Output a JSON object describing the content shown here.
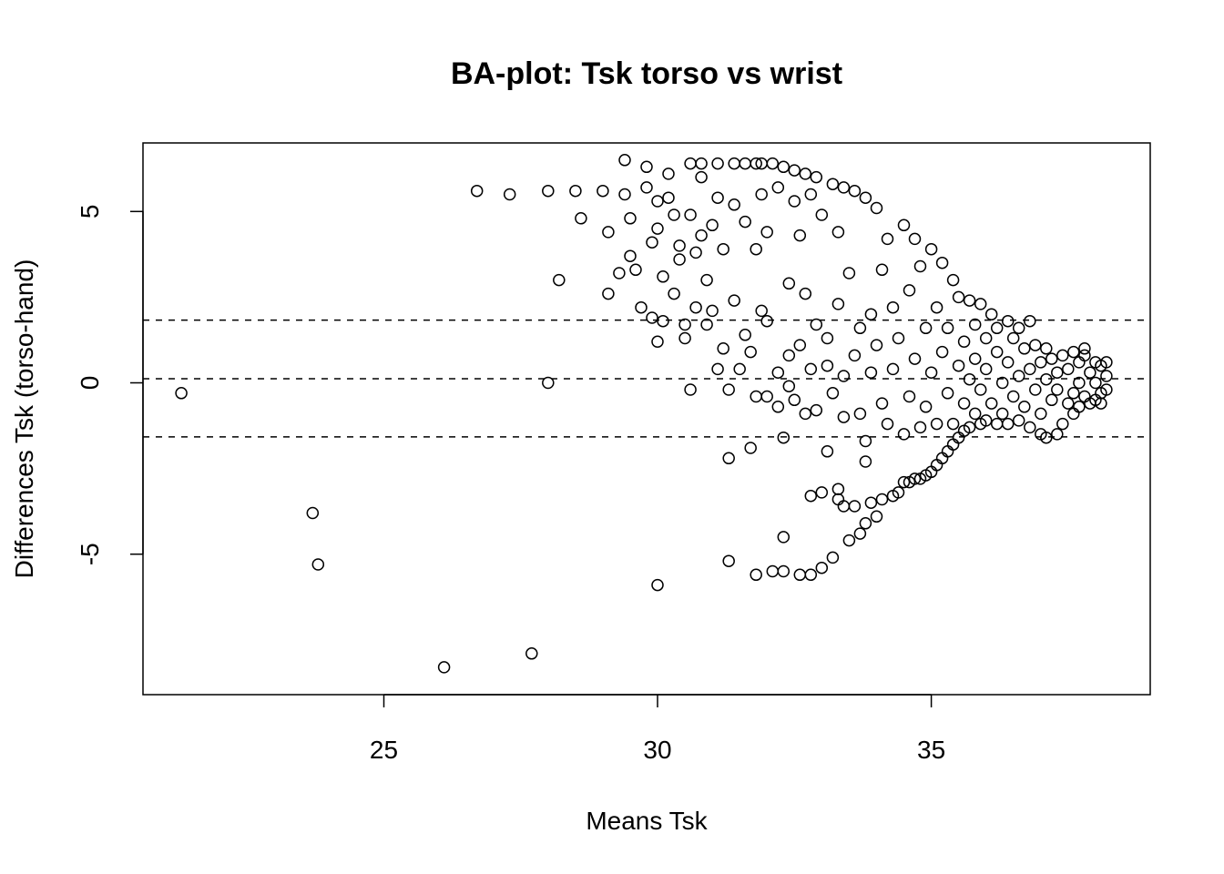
{
  "chart_data": {
    "type": "scatter",
    "title": "BA-plot: Tsk torso vs wrist",
    "xlabel": "Means Tsk",
    "ylabel": "Differences Tsk (torso-hand)",
    "xlim": [
      20.6,
      39.0
    ],
    "ylim": [
      -9.1,
      7.0
    ],
    "xticks": [
      25,
      30,
      35
    ],
    "yticks": [
      -5,
      0,
      5
    ],
    "grid": false,
    "legend": "none",
    "marker": "open-circle",
    "reference_lines": [
      {
        "name": "upper limit of agreement",
        "y": 1.83
      },
      {
        "name": "mean difference",
        "y": 0.12
      },
      {
        "name": "lower limit of agreement",
        "y": -1.58
      }
    ],
    "points": [
      [
        21.3,
        -0.3
      ],
      [
        23.7,
        -3.8
      ],
      [
        23.8,
        -5.3
      ],
      [
        26.1,
        -8.3
      ],
      [
        27.7,
        -7.9
      ],
      [
        26.7,
        5.6
      ],
      [
        27.3,
        5.5
      ],
      [
        28.0,
        5.6
      ],
      [
        28.2,
        3.0
      ],
      [
        28.0,
        0.0
      ],
      [
        28.5,
        5.6
      ],
      [
        28.6,
        4.8
      ],
      [
        29.0,
        5.6
      ],
      [
        29.1,
        4.4
      ],
      [
        29.1,
        2.6
      ],
      [
        29.3,
        3.2
      ],
      [
        29.4,
        6.5
      ],
      [
        29.4,
        5.5
      ],
      [
        29.5,
        3.7
      ],
      [
        29.5,
        4.8
      ],
      [
        29.6,
        3.3
      ],
      [
        29.7,
        2.2
      ],
      [
        29.8,
        6.3
      ],
      [
        29.8,
        5.7
      ],
      [
        29.9,
        4.1
      ],
      [
        29.9,
        1.9
      ],
      [
        30.0,
        5.3
      ],
      [
        30.0,
        4.5
      ],
      [
        30.0,
        1.2
      ],
      [
        30.1,
        3.1
      ],
      [
        30.1,
        1.8
      ],
      [
        30.0,
        -5.9
      ],
      [
        30.2,
        6.1
      ],
      [
        30.2,
        5.4
      ],
      [
        30.3,
        4.9
      ],
      [
        30.3,
        2.6
      ],
      [
        30.4,
        4.0
      ],
      [
        30.4,
        3.6
      ],
      [
        30.5,
        1.7
      ],
      [
        30.5,
        1.3
      ],
      [
        30.6,
        6.4
      ],
      [
        30.6,
        4.9
      ],
      [
        30.6,
        -0.2
      ],
      [
        30.7,
        3.8
      ],
      [
        30.7,
        2.2
      ],
      [
        30.8,
        6.4
      ],
      [
        30.8,
        6.0
      ],
      [
        30.8,
        4.3
      ],
      [
        30.9,
        1.7
      ],
      [
        30.9,
        3.0
      ],
      [
        31.0,
        4.6
      ],
      [
        31.0,
        2.1
      ],
      [
        31.1,
        6.4
      ],
      [
        31.1,
        5.4
      ],
      [
        31.1,
        0.4
      ],
      [
        31.2,
        3.9
      ],
      [
        31.2,
        1.0
      ],
      [
        31.3,
        -2.2
      ],
      [
        31.3,
        -0.2
      ],
      [
        31.3,
        -5.2
      ],
      [
        31.4,
        6.4
      ],
      [
        31.4,
        5.2
      ],
      [
        31.4,
        2.4
      ],
      [
        31.5,
        0.4
      ],
      [
        31.6,
        6.4
      ],
      [
        31.6,
        4.7
      ],
      [
        31.6,
        1.4
      ],
      [
        31.7,
        0.9
      ],
      [
        31.7,
        -1.9
      ],
      [
        31.8,
        6.4
      ],
      [
        31.8,
        3.9
      ],
      [
        31.8,
        -0.4
      ],
      [
        31.8,
        -5.6
      ],
      [
        31.9,
        6.4
      ],
      [
        31.9,
        5.5
      ],
      [
        31.9,
        2.1
      ],
      [
        32.0,
        -0.4
      ],
      [
        32.0,
        1.8
      ],
      [
        32.0,
        4.4
      ],
      [
        32.1,
        6.4
      ],
      [
        32.1,
        -5.5
      ],
      [
        32.2,
        5.7
      ],
      [
        32.2,
        0.3
      ],
      [
        32.2,
        -0.7
      ],
      [
        32.3,
        6.3
      ],
      [
        32.3,
        -1.6
      ],
      [
        32.3,
        -4.5
      ],
      [
        32.3,
        -5.5
      ],
      [
        32.4,
        2.9
      ],
      [
        32.4,
        0.8
      ],
      [
        32.4,
        -0.1
      ],
      [
        32.5,
        6.2
      ],
      [
        32.5,
        5.3
      ],
      [
        32.5,
        -0.5
      ],
      [
        32.6,
        -5.6
      ],
      [
        32.6,
        1.1
      ],
      [
        32.6,
        4.3
      ],
      [
        32.7,
        6.1
      ],
      [
        32.7,
        2.6
      ],
      [
        32.7,
        -0.9
      ],
      [
        32.8,
        5.5
      ],
      [
        32.8,
        0.4
      ],
      [
        32.8,
        -3.3
      ],
      [
        32.8,
        -5.6
      ],
      [
        32.9,
        6.0
      ],
      [
        32.9,
        1.7
      ],
      [
        32.9,
        -0.8
      ],
      [
        33.0,
        4.9
      ],
      [
        33.0,
        -3.2
      ],
      [
        33.0,
        -5.4
      ],
      [
        33.1,
        0.5
      ],
      [
        33.1,
        -2.0
      ],
      [
        33.1,
        1.3
      ],
      [
        33.2,
        5.8
      ],
      [
        33.2,
        -5.1
      ],
      [
        33.2,
        -0.3
      ],
      [
        33.3,
        4.4
      ],
      [
        33.3,
        2.3
      ],
      [
        33.3,
        -3.1
      ],
      [
        33.3,
        -3.4
      ],
      [
        33.4,
        5.7
      ],
      [
        33.4,
        0.2
      ],
      [
        33.4,
        -1.0
      ],
      [
        33.4,
        -3.6
      ],
      [
        33.5,
        -4.6
      ],
      [
        33.5,
        3.2
      ],
      [
        33.6,
        5.6
      ],
      [
        33.6,
        -3.6
      ],
      [
        33.6,
        0.8
      ],
      [
        33.7,
        -4.4
      ],
      [
        33.7,
        1.6
      ],
      [
        33.7,
        -0.9
      ],
      [
        33.8,
        5.4
      ],
      [
        33.8,
        -1.7
      ],
      [
        33.8,
        -2.3
      ],
      [
        33.8,
        -4.1
      ],
      [
        33.9,
        -3.5
      ],
      [
        33.9,
        2.0
      ],
      [
        33.9,
        0.3
      ],
      [
        34.0,
        5.1
      ],
      [
        34.0,
        -3.9
      ],
      [
        34.0,
        1.1
      ],
      [
        34.1,
        -3.4
      ],
      [
        34.1,
        3.3
      ],
      [
        34.1,
        -0.6
      ],
      [
        34.2,
        4.2
      ],
      [
        34.2,
        -1.2
      ],
      [
        34.3,
        -3.3
      ],
      [
        34.3,
        0.4
      ],
      [
        34.3,
        2.2
      ],
      [
        34.4,
        -3.2
      ],
      [
        34.4,
        1.3
      ],
      [
        34.5,
        4.6
      ],
      [
        34.5,
        -2.9
      ],
      [
        34.5,
        -1.5
      ],
      [
        34.6,
        -0.4
      ],
      [
        34.6,
        2.7
      ],
      [
        34.6,
        -2.9
      ],
      [
        34.7,
        4.2
      ],
      [
        34.7,
        0.7
      ],
      [
        34.7,
        -2.8
      ],
      [
        34.8,
        -1.3
      ],
      [
        34.8,
        3.4
      ],
      [
        34.8,
        -2.8
      ],
      [
        34.9,
        -2.7
      ],
      [
        34.9,
        1.6
      ],
      [
        34.9,
        -0.7
      ],
      [
        35.0,
        3.9
      ],
      [
        35.0,
        -2.6
      ],
      [
        35.0,
        0.3
      ],
      [
        35.1,
        -1.2
      ],
      [
        35.1,
        2.2
      ],
      [
        35.1,
        -2.4
      ],
      [
        35.2,
        3.5
      ],
      [
        35.2,
        -2.2
      ],
      [
        35.2,
        0.9
      ],
      [
        35.3,
        -0.3
      ],
      [
        35.3,
        -2.0
      ],
      [
        35.3,
        1.6
      ],
      [
        35.4,
        3.0
      ],
      [
        35.4,
        -1.8
      ],
      [
        35.4,
        -1.2
      ],
      [
        35.5,
        0.5
      ],
      [
        35.5,
        2.5
      ],
      [
        35.5,
        -1.6
      ],
      [
        35.6,
        1.2
      ],
      [
        35.6,
        -0.6
      ],
      [
        35.6,
        -1.4
      ],
      [
        35.7,
        2.4
      ],
      [
        35.7,
        0.1
      ],
      [
        35.7,
        -1.3
      ],
      [
        35.8,
        1.7
      ],
      [
        35.8,
        -0.9
      ],
      [
        35.8,
        0.7
      ],
      [
        35.9,
        2.3
      ],
      [
        35.9,
        -1.2
      ],
      [
        35.9,
        -0.2
      ],
      [
        36.0,
        1.3
      ],
      [
        36.0,
        0.4
      ],
      [
        36.0,
        -1.1
      ],
      [
        36.1,
        2.0
      ],
      [
        36.1,
        -0.6
      ],
      [
        36.2,
        0.9
      ],
      [
        36.2,
        -1.2
      ],
      [
        36.2,
        1.6
      ],
      [
        36.3,
        0.0
      ],
      [
        36.3,
        -0.9
      ],
      [
        36.4,
        1.8
      ],
      [
        36.4,
        0.6
      ],
      [
        36.4,
        -1.2
      ],
      [
        36.5,
        1.3
      ],
      [
        36.5,
        -0.4
      ],
      [
        36.6,
        1.6
      ],
      [
        36.6,
        0.2
      ],
      [
        36.6,
        -1.1
      ],
      [
        36.7,
        1.0
      ],
      [
        36.7,
        -0.7
      ],
      [
        36.8,
        1.8
      ],
      [
        36.8,
        0.4
      ],
      [
        36.8,
        -1.3
      ],
      [
        36.9,
        -0.2
      ],
      [
        36.9,
        1.1
      ],
      [
        37.0,
        0.6
      ],
      [
        37.0,
        -1.5
      ],
      [
        37.0,
        -0.9
      ],
      [
        37.1,
        1.0
      ],
      [
        37.1,
        0.1
      ],
      [
        37.1,
        -1.6
      ],
      [
        37.2,
        -0.5
      ],
      [
        37.2,
        0.7
      ],
      [
        37.3,
        -1.5
      ],
      [
        37.3,
        0.3
      ],
      [
        37.3,
        -0.2
      ],
      [
        37.4,
        0.8
      ],
      [
        37.4,
        -1.2
      ],
      [
        37.5,
        0.4
      ],
      [
        37.5,
        -0.6
      ],
      [
        37.6,
        0.9
      ],
      [
        37.6,
        -0.3
      ],
      [
        37.6,
        -0.9
      ],
      [
        37.7,
        0.6
      ],
      [
        37.7,
        0.0
      ],
      [
        37.7,
        -0.7
      ],
      [
        37.8,
        0.8
      ],
      [
        37.8,
        1.0
      ],
      [
        37.8,
        -0.4
      ],
      [
        37.9,
        0.3
      ],
      [
        37.9,
        -0.6
      ],
      [
        38.0,
        0.6
      ],
      [
        38.0,
        0.0
      ],
      [
        38.0,
        -0.5
      ],
      [
        38.1,
        0.5
      ],
      [
        38.1,
        -0.3
      ],
      [
        38.1,
        -0.6
      ],
      [
        38.2,
        0.2
      ],
      [
        38.2,
        -0.2
      ],
      [
        38.2,
        0.6
      ]
    ]
  }
}
